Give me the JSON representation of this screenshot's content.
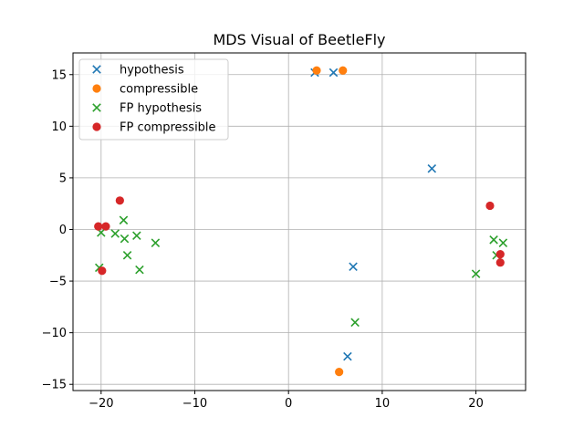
{
  "chart_data": {
    "type": "scatter",
    "title": "MDS Visual of BeetleFly",
    "xlabel": "",
    "ylabel": "",
    "xlim": [
      -23,
      25.3
    ],
    "ylim": [
      -15.6,
      17.1
    ],
    "xticks": [
      -20,
      -10,
      0,
      10,
      20
    ],
    "yticks": [
      -15,
      -10,
      -5,
      0,
      5,
      10,
      15
    ],
    "grid": true,
    "legend_position": "top-left",
    "series": [
      {
        "name": "hypothesis",
        "marker": "x",
        "color": "#1f77b4",
        "points": [
          [
            2.8,
            15.2
          ],
          [
            4.8,
            15.2
          ],
          [
            15.3,
            5.9
          ],
          [
            6.9,
            -3.6
          ],
          [
            6.3,
            -12.3
          ]
        ]
      },
      {
        "name": "compressible",
        "marker": "o",
        "color": "#ff7f0e",
        "points": [
          [
            3.0,
            15.4
          ],
          [
            5.8,
            15.4
          ],
          [
            5.4,
            -13.8
          ]
        ]
      },
      {
        "name": "FP hypothesis",
        "marker": "x",
        "color": "#2ca02c",
        "points": [
          [
            -20.2,
            -3.7
          ],
          [
            -20.0,
            -0.3
          ],
          [
            -18.5,
            -0.4
          ],
          [
            -17.6,
            0.9
          ],
          [
            -17.5,
            -0.9
          ],
          [
            -17.2,
            -2.5
          ],
          [
            -16.2,
            -0.6
          ],
          [
            -15.9,
            -3.9
          ],
          [
            -14.2,
            -1.3
          ],
          [
            7.1,
            -9.0
          ],
          [
            20.0,
            -4.3
          ],
          [
            21.9,
            -1.0
          ],
          [
            22.2,
            -2.5
          ],
          [
            22.9,
            -1.3
          ]
        ]
      },
      {
        "name": "FP compressible",
        "marker": "o",
        "color": "#d62728",
        "points": [
          [
            -20.3,
            0.3
          ],
          [
            -19.5,
            0.3
          ],
          [
            -19.9,
            -4.0
          ],
          [
            -18.0,
            2.8
          ],
          [
            21.5,
            2.3
          ],
          [
            22.6,
            -2.4
          ],
          [
            22.6,
            -3.2
          ]
        ]
      }
    ]
  }
}
